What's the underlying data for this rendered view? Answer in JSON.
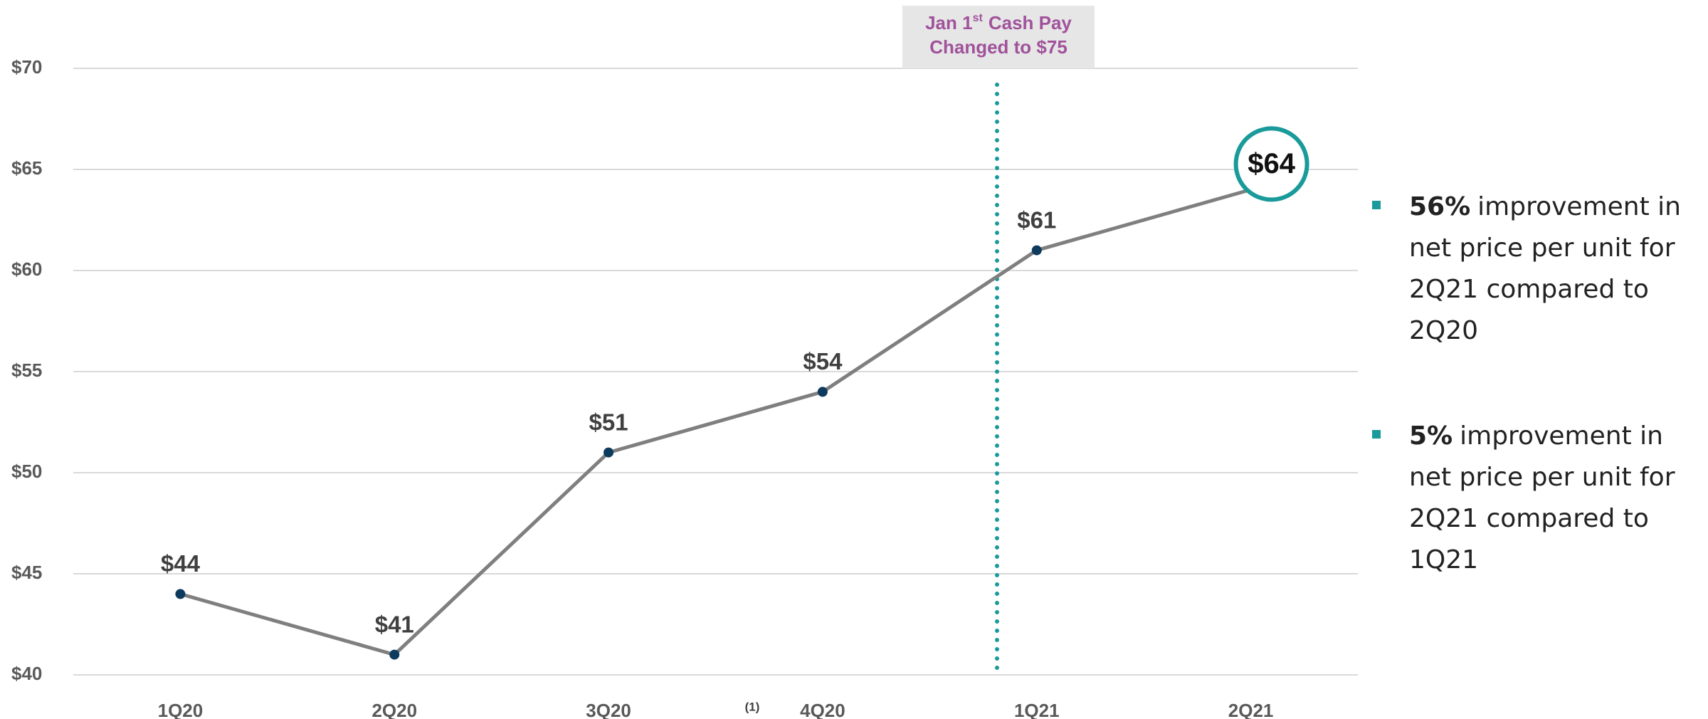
{
  "chart_data": {
    "type": "line",
    "categories": [
      "1Q20",
      "2Q20",
      "3Q20",
      "4Q20",
      "1Q21",
      "2Q21"
    ],
    "values": [
      44,
      41,
      51,
      54,
      61,
      64
    ],
    "value_labels": [
      "$44",
      "$41",
      "$51",
      "$54",
      "$61",
      "$64"
    ],
    "color": "#7f7f7f",
    "marker_color": "#0d3b5e",
    "highlight_color": "#1a9a9a",
    "ylim": [
      40,
      70
    ],
    "yticks": [
      {
        "value": 40,
        "label": "$40"
      },
      {
        "value": 45,
        "label": "$45"
      },
      {
        "value": 50,
        "label": "$50"
      },
      {
        "value": 55,
        "label": "$55"
      },
      {
        "value": 60,
        "label": "$60"
      },
      {
        "value": 65,
        "label": "$65"
      },
      {
        "value": 70,
        "label": "$70"
      }
    ],
    "grid": true,
    "annotation": {
      "line1": "Jan 1",
      "sup": "st",
      "line1_rest": "Cash Pay",
      "line2": "Changed to $75"
    },
    "footnote": "(1)"
  },
  "bullets": [
    {
      "bold": "56%",
      "lines": [
        "improvement in",
        "net price per unit for",
        "2Q21 compared to",
        "2Q20"
      ]
    },
    {
      "bold": "5%",
      "lines": [
        "improvement in",
        "net price per unit for",
        "2Q21 compared to",
        "1Q21"
      ]
    }
  ]
}
